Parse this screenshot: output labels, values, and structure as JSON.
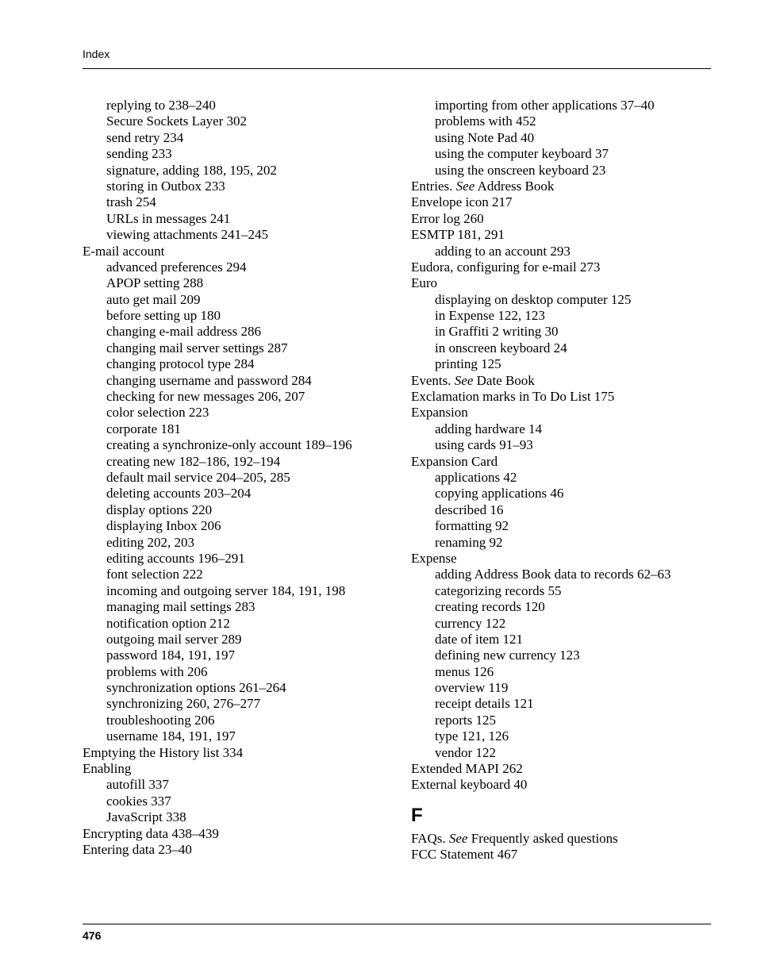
{
  "header": {
    "running": "Index"
  },
  "footer": {
    "page": "476"
  },
  "left_col": [
    {
      "lvl": 1,
      "text": "replying to  238–240"
    },
    {
      "lvl": 1,
      "text": "Secure Sockets Layer  302"
    },
    {
      "lvl": 1,
      "text": "send retry  234"
    },
    {
      "lvl": 1,
      "text": "sending  233"
    },
    {
      "lvl": 1,
      "text": "signature, adding  188, 195, 202"
    },
    {
      "lvl": 1,
      "text": "storing in Outbox  233"
    },
    {
      "lvl": 1,
      "text": "trash  254"
    },
    {
      "lvl": 1,
      "text": "URLs in messages  241"
    },
    {
      "lvl": 1,
      "text": "viewing attachments  241–245"
    },
    {
      "lvl": 0,
      "text": "E-mail account"
    },
    {
      "lvl": 1,
      "text": "advanced preferences  294"
    },
    {
      "lvl": 1,
      "text": "APOP setting  288"
    },
    {
      "lvl": 1,
      "text": "auto get mail  209"
    },
    {
      "lvl": 1,
      "text": "before setting up  180"
    },
    {
      "lvl": 1,
      "text": "changing e-mail address  286"
    },
    {
      "lvl": 1,
      "text": "changing mail server settings  287"
    },
    {
      "lvl": 1,
      "text": "changing protocol type  284"
    },
    {
      "lvl": 1,
      "text": "changing username and password  284"
    },
    {
      "lvl": 1,
      "text": "checking for new messages  206, 207"
    },
    {
      "lvl": 1,
      "text": "color selection  223"
    },
    {
      "lvl": 1,
      "text": "corporate  181"
    },
    {
      "lvl": 1,
      "text": "creating a synchronize-only account  189–196"
    },
    {
      "lvl": 1,
      "text": "creating new  182–186, 192–194"
    },
    {
      "lvl": 1,
      "text": "default mail service  204–205, 285"
    },
    {
      "lvl": 1,
      "text": "deleting accounts  203–204"
    },
    {
      "lvl": 1,
      "text": "display options  220"
    },
    {
      "lvl": 1,
      "text": "displaying Inbox  206"
    },
    {
      "lvl": 1,
      "text": "editing  202, 203"
    },
    {
      "lvl": 1,
      "text": "editing accounts  196–291"
    },
    {
      "lvl": 1,
      "text": "font selection  222"
    },
    {
      "lvl": 1,
      "text": "incoming and outgoing server  184, 191, 198"
    },
    {
      "lvl": 1,
      "text": "managing mail settings  283"
    },
    {
      "lvl": 1,
      "text": "notification option  212"
    },
    {
      "lvl": 1,
      "text": "outgoing mail server  289"
    },
    {
      "lvl": 1,
      "text": "password  184, 191, 197"
    },
    {
      "lvl": 1,
      "text": "problems with  206"
    },
    {
      "lvl": 1,
      "text": "synchronization options  261–264"
    },
    {
      "lvl": 1,
      "text": "synchronizing  260, 276–277"
    },
    {
      "lvl": 1,
      "text": "troubleshooting  206"
    },
    {
      "lvl": 1,
      "text": "username  184, 191, 197"
    },
    {
      "lvl": 0,
      "text": "Emptying the History list  334"
    },
    {
      "lvl": 0,
      "text": "Enabling"
    },
    {
      "lvl": 1,
      "text": "autofill  337"
    },
    {
      "lvl": 1,
      "text": "cookies  337"
    },
    {
      "lvl": 1,
      "text": "JavaScript  338"
    },
    {
      "lvl": 0,
      "text": "Encrypting data  438–439"
    },
    {
      "lvl": 0,
      "text": "Entering data  23–40"
    }
  ],
  "right_col": [
    {
      "lvl": 1,
      "text": "importing from other applications  37–40"
    },
    {
      "lvl": 1,
      "text": "problems with  452"
    },
    {
      "lvl": 1,
      "text": "using Note Pad  40"
    },
    {
      "lvl": 1,
      "text": "using the computer keyboard  37"
    },
    {
      "lvl": 1,
      "text": "using the onscreen keyboard  23"
    },
    {
      "lvl": 0,
      "html": "Entries. <em>See</em> Address Book"
    },
    {
      "lvl": 0,
      "text": "Envelope icon  217"
    },
    {
      "lvl": 0,
      "text": "Error log  260"
    },
    {
      "lvl": 0,
      "text": "ESMTP  181, 291"
    },
    {
      "lvl": 1,
      "text": "adding to an account  293"
    },
    {
      "lvl": 0,
      "text": "Eudora, configuring for e-mail  273"
    },
    {
      "lvl": 0,
      "text": "Euro"
    },
    {
      "lvl": 1,
      "text": "displaying on desktop computer  125"
    },
    {
      "lvl": 1,
      "text": "in Expense  122, 123"
    },
    {
      "lvl": 1,
      "text": "in Graffiti 2 writing  30"
    },
    {
      "lvl": 1,
      "text": "in onscreen keyboard  24"
    },
    {
      "lvl": 1,
      "text": "printing  125"
    },
    {
      "lvl": 0,
      "html": "Events. <em>See</em> Date Book"
    },
    {
      "lvl": 0,
      "text": "Exclamation marks in To Do List  175"
    },
    {
      "lvl": 0,
      "text": "Expansion"
    },
    {
      "lvl": 1,
      "text": "adding hardware  14"
    },
    {
      "lvl": 1,
      "text": "using cards  91–93"
    },
    {
      "lvl": 0,
      "text": "Expansion Card"
    },
    {
      "lvl": 1,
      "text": "applications  42"
    },
    {
      "lvl": 1,
      "text": "copying applications  46"
    },
    {
      "lvl": 1,
      "text": "described  16"
    },
    {
      "lvl": 1,
      "text": "formatting  92"
    },
    {
      "lvl": 1,
      "text": "renaming  92"
    },
    {
      "lvl": 0,
      "text": "Expense"
    },
    {
      "lvl": 1,
      "text": "adding Address Book data to records  62–63"
    },
    {
      "lvl": 1,
      "text": "categorizing records  55"
    },
    {
      "lvl": 1,
      "text": "creating records  120"
    },
    {
      "lvl": 1,
      "text": "currency  122"
    },
    {
      "lvl": 1,
      "text": "date of item  121"
    },
    {
      "lvl": 1,
      "text": "defining new currency  123"
    },
    {
      "lvl": 1,
      "text": "menus  126"
    },
    {
      "lvl": 1,
      "text": "overview  119"
    },
    {
      "lvl": 1,
      "text": "receipt details  121"
    },
    {
      "lvl": 1,
      "text": "reports  125"
    },
    {
      "lvl": 1,
      "text": "type  121, 126"
    },
    {
      "lvl": 1,
      "text": "vendor  122"
    },
    {
      "lvl": 0,
      "text": "Extended MAPI  262"
    },
    {
      "lvl": 0,
      "text": "External keyboard  40"
    },
    {
      "section": "F"
    },
    {
      "lvl": 0,
      "html": "FAQs. <em>See</em> Frequently asked questions"
    },
    {
      "lvl": 0,
      "text": "FCC Statement  467"
    }
  ]
}
